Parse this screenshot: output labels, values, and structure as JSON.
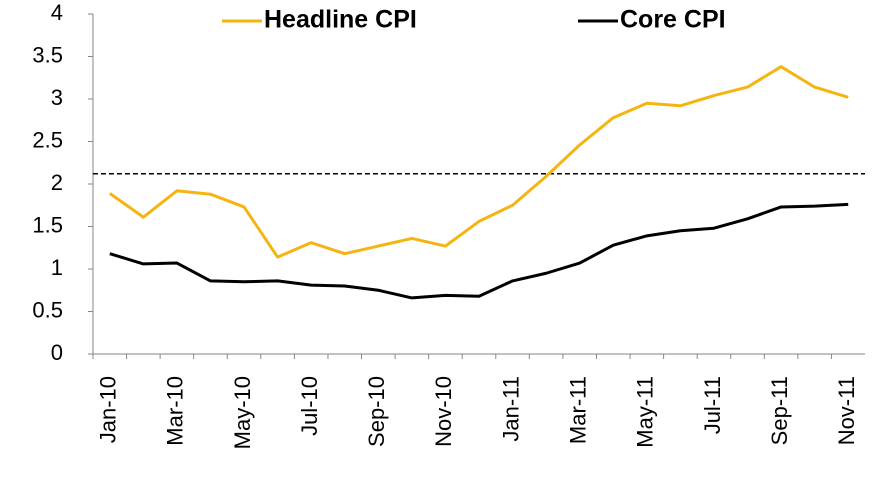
{
  "chart_data": {
    "type": "line",
    "categories": [
      "Jan-10",
      null,
      "Mar-10",
      null,
      "May-10",
      null,
      "Jul-10",
      null,
      "Sep-10",
      null,
      "Nov-10",
      null,
      "Jan-11",
      null,
      "Mar-11",
      null,
      "May-11",
      null,
      "Jul-11",
      null,
      "Sep-11",
      null,
      "Nov-11"
    ],
    "series": [
      {
        "name": "Headline CPI",
        "color": "#f5b412",
        "values": [
          1.89,
          1.61,
          1.92,
          1.88,
          1.73,
          1.14,
          1.31,
          1.18,
          1.27,
          1.36,
          1.27,
          1.56,
          1.75,
          2.09,
          2.46,
          2.78,
          2.95,
          2.92,
          3.04,
          3.14,
          3.38,
          3.14,
          3.02
        ]
      },
      {
        "name": "Core CPI",
        "color": "#000000",
        "values": [
          1.18,
          1.06,
          1.07,
          0.86,
          0.85,
          0.86,
          0.81,
          0.8,
          0.75,
          0.66,
          0.69,
          0.68,
          0.86,
          0.95,
          1.07,
          1.28,
          1.39,
          1.45,
          1.48,
          1.59,
          1.73,
          1.74,
          1.76
        ]
      }
    ],
    "reference_line": 2.12,
    "ylim": [
      0,
      4
    ],
    "yticks": [
      0,
      0.5,
      1,
      1.5,
      2,
      2.5,
      3,
      3.5,
      4
    ],
    "legend": "top",
    "grid": false
  }
}
